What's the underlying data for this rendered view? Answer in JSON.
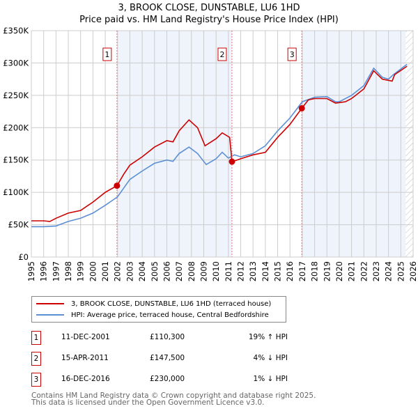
{
  "chart_data": {
    "type": "line",
    "title": "3, BROOK CLOSE, DUNSTABLE, LU6 1HD",
    "subtitle": "Price paid vs. HM Land Registry's House Price Index (HPI)",
    "xlim": [
      1995,
      2026
    ],
    "ylim": [
      0,
      350000
    ],
    "yticks": [
      0,
      50000,
      100000,
      150000,
      200000,
      250000,
      300000,
      350000
    ],
    "ytick_labels": [
      "£0",
      "£50K",
      "£100K",
      "£150K",
      "£200K",
      "£250K",
      "£300K",
      "£350K"
    ],
    "xticks": [
      "1995",
      "1996",
      "1997",
      "1998",
      "1999",
      "2000",
      "2001",
      "2002",
      "2003",
      "2004",
      "2005",
      "2006",
      "2007",
      "2008",
      "2009",
      "2010",
      "2011",
      "2012",
      "2013",
      "2014",
      "2015",
      "2016",
      "2017",
      "2018",
      "2019",
      "2020",
      "2021",
      "2022",
      "2023",
      "2024",
      "2025",
      "2026"
    ],
    "grid": true,
    "series": [
      {
        "name": "3, BROOK CLOSE, DUNSTABLE, LU6 1HD (terraced house)",
        "color": "#cc0000",
        "x": [
          1995,
          1996,
          1996.5,
          1997,
          1998,
          1999,
          2000,
          2001,
          2001.95,
          2002.5,
          2003,
          2004,
          2005,
          2006,
          2006.5,
          2007,
          2007.8,
          2008.5,
          2009.1,
          2010,
          2010.5,
          2011.1,
          2011.29,
          2011.7,
          2012,
          2013,
          2014,
          2015,
          2016,
          2016.96,
          2017.5,
          2018,
          2019,
          2019.7,
          2020.5,
          2021,
          2022,
          2022.8,
          2023.5,
          2024.3,
          2024.5,
          2025.5
        ],
        "y": [
          56000,
          56000,
          55000,
          60000,
          68000,
          72000,
          85000,
          100000,
          110300,
          128000,
          142000,
          155000,
          170000,
          180000,
          178000,
          195000,
          212000,
          200000,
          172000,
          183000,
          192000,
          185000,
          147500,
          150000,
          152000,
          158000,
          162000,
          185000,
          205000,
          230000,
          243000,
          245000,
          245000,
          238000,
          240000,
          245000,
          260000,
          288000,
          275000,
          272000,
          282000,
          295000
        ]
      },
      {
        "name": "HPI: Average price, terraced house, Central Bedfordshire",
        "color": "#5b8fd4",
        "x": [
          1995,
          1996,
          1997,
          1998,
          1999,
          2000,
          2001,
          2002,
          2003,
          2004,
          2005,
          2006,
          2006.5,
          2007,
          2007.8,
          2008.5,
          2009.2,
          2010,
          2010.5,
          2011,
          2011.5,
          2012,
          2013,
          2014,
          2015,
          2016,
          2017,
          2018,
          2019,
          2019.7,
          2020,
          2021,
          2022,
          2022.8,
          2023.5,
          2024,
          2024.4,
          2025.5
        ],
        "y": [
          47000,
          47000,
          48000,
          55000,
          60000,
          68000,
          80000,
          93000,
          120000,
          133000,
          145000,
          150000,
          148000,
          160000,
          170000,
          160000,
          143000,
          152000,
          162000,
          153000,
          158000,
          155000,
          160000,
          172000,
          195000,
          215000,
          240000,
          247000,
          248000,
          240000,
          240000,
          250000,
          265000,
          292000,
          278000,
          275000,
          282000,
          298000
        ]
      }
    ],
    "annotations": [
      {
        "label": "1",
        "x": 2001.95,
        "y": 110300
      },
      {
        "label": "2",
        "x": 2011.29,
        "y": 147500
      },
      {
        "label": "3",
        "x": 2016.96,
        "y": 230000
      }
    ],
    "shaded_ranges": [
      [
        2001.95,
        2011.29
      ],
      [
        2016.96,
        2025.4
      ]
    ],
    "hatched_from": 2025.4
  },
  "legend": [
    {
      "label": "3, BROOK CLOSE, DUNSTABLE, LU6 1HD (terraced house)",
      "color": "#cc0000"
    },
    {
      "label": "HPI: Average price, terraced house, Central Bedfordshire",
      "color": "#5b8fd4"
    }
  ],
  "transactions": [
    {
      "num": "1",
      "date": "11-DEC-2001",
      "price": "£110,300",
      "hpi": "19% ↑ HPI"
    },
    {
      "num": "2",
      "date": "15-APR-2011",
      "price": "£147,500",
      "hpi": "4% ↓ HPI"
    },
    {
      "num": "3",
      "date": "16-DEC-2016",
      "price": "£230,000",
      "hpi": "1% ↓ HPI"
    }
  ],
  "footer": [
    "Contains HM Land Registry data © Crown copyright and database right 2025.",
    "This data is licensed under the Open Government Licence v3.0."
  ]
}
